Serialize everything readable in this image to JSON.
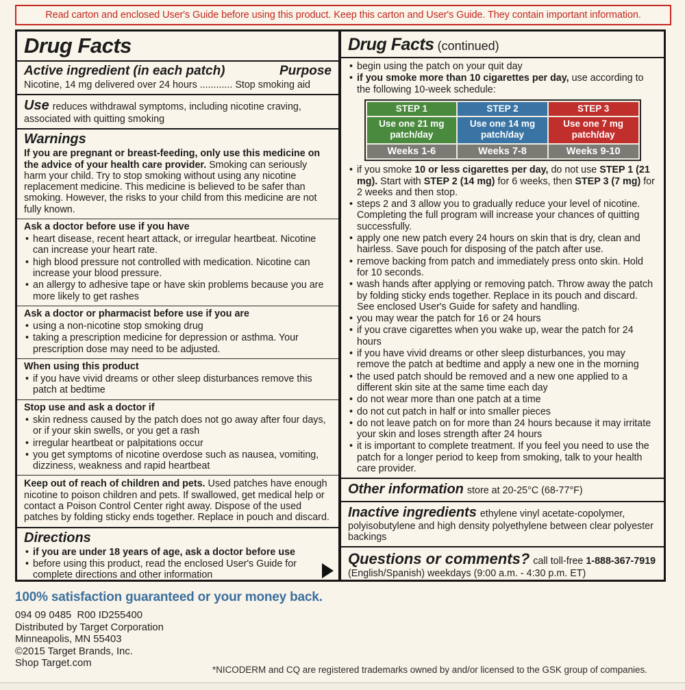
{
  "colors": {
    "notice_red": "#c4271f",
    "guarantee_blue": "#3c6f9e",
    "step1_green": "#4a8a3e",
    "step2_blue": "#3a74a4",
    "step3_red": "#c02f2c",
    "weeks_gray": "#7c7a75"
  },
  "top_notice": "Read carton and enclosed User's Guide before using this product. Keep this carton and User's Guide. They contain important information.",
  "left_panel": {
    "title": "Drug Facts",
    "active_ingredient": {
      "heading": "Active ingredient (in each patch)",
      "purpose_heading": "Purpose",
      "row": "Nicotine, 14 mg delivered over 24 hours ............ Stop smoking aid"
    },
    "use": {
      "heading": "Use",
      "text": "reduces withdrawal symptoms, including nicotine craving, associated with quitting smoking"
    },
    "warnings": {
      "heading": "Warnings",
      "bold_lead": "If you are pregnant or breast-feeding, only use this medicine on the advice of your health care provider.",
      "text": " Smoking can seriously harm your child. Try to stop smoking without using any nicotine replacement medicine. This medicine is believed to be safer than smoking. However, the risks to your child from this medicine are not fully known."
    },
    "ask_doctor": {
      "heading": "Ask a doctor before use if you have",
      "bullets": [
        "heart disease, recent heart attack, or irregular heartbeat. Nicotine can increase your heart rate.",
        "high blood pressure not controlled with medication. Nicotine can increase your blood pressure.",
        "an allergy to adhesive tape or have skin problems because you are more likely to get rashes"
      ]
    },
    "ask_pharmacist": {
      "heading": "Ask a doctor or pharmacist before use if you are",
      "bullets": [
        "using a non-nicotine stop smoking drug",
        "taking a prescription medicine for depression or asthma. Your prescription dose may need to be adjusted."
      ]
    },
    "when_using": {
      "heading": "When using this product",
      "bullets": [
        "if you have vivid dreams or other sleep disturbances remove this patch at bedtime"
      ]
    },
    "stop_use": {
      "heading": "Stop use and ask a doctor if",
      "bullets": [
        "skin redness caused by the patch does not go away after four days, or if your skin swells, or you get a rash",
        "irregular heartbeat or palpitations occur",
        "you get symptoms of nicotine overdose such as nausea, vomiting, dizziness, weakness and rapid heartbeat"
      ]
    },
    "keep_out": {
      "bold_lead": "Keep out of reach of children and pets.",
      "text": " Used patches have enough nicotine to poison children and pets. If swallowed, get medical help or contact a Poison Control Center right away. Dispose of the used patches by folding sticky ends together. Replace in pouch and discard."
    },
    "directions": {
      "heading": "Directions",
      "bullets": [
        [
          {
            "t": "if you are under 18 years of age, ask a doctor before use",
            "b": 1
          }
        ],
        [
          {
            "t": "before using this product, read the enclosed User's Guide for complete directions and other information",
            "b": 0
          }
        ]
      ]
    }
  },
  "right_panel": {
    "title": "Drug Facts",
    "title_suffix": " (continued)",
    "top_bullets": [
      "begin using the patch on your quit day",
      [
        {
          "t": "if you smoke more than 10 cigarettes per day,",
          "b": 1
        },
        {
          "t": " use according to the following 10-week schedule:",
          "b": 0
        }
      ]
    ],
    "schedule": {
      "steps": [
        {
          "label": "STEP 1",
          "use": "Use one 21 mg patch/day",
          "weeks": "Weeks 1-6"
        },
        {
          "label": "STEP 2",
          "use": "Use one 14 mg patch/day",
          "weeks": "Weeks 7-8"
        },
        {
          "label": "STEP 3",
          "use": "Use one 7 mg patch/day",
          "weeks": "Weeks 9-10"
        }
      ]
    },
    "main_bullets": [
      [
        {
          "t": "if you smoke ",
          "b": 0
        },
        {
          "t": "10 or less cigarettes per day,",
          "b": 1
        },
        {
          "t": " do not use ",
          "b": 0
        },
        {
          "t": "STEP 1 (21 mg).",
          "b": 1
        },
        {
          "t": " Start with ",
          "b": 0
        },
        {
          "t": "STEP 2 (14 mg)",
          "b": 1
        },
        {
          "t": " for 6 weeks, then ",
          "b": 0
        },
        {
          "t": "STEP 3 (7 mg)",
          "b": 1
        },
        {
          "t": " for 2 weeks and then stop.",
          "b": 0
        }
      ],
      "steps 2 and 3 allow you to gradually reduce your level of nicotine. Completing the full program will increase your chances of quitting successfully.",
      "apply one new patch every 24 hours on skin that is dry, clean and hairless. Save pouch for disposing of the patch after use.",
      "remove backing from patch and immediately press onto skin. Hold for 10 seconds.",
      "wash hands after applying or removing patch. Throw away the patch by folding sticky ends together. Replace in its pouch and discard. See enclosed User's Guide for safety and handling.",
      "you may wear the patch for 16 or 24 hours",
      "if you crave cigarettes when you wake up, wear the patch for 24 hours",
      "if you have vivid dreams or other sleep disturbances, you may remove the patch at bedtime and apply a new one in the morning",
      "the used patch should be removed and a new one applied to a different skin site at the same time each day",
      "do not wear more than one patch at a time",
      "do not cut patch in half or into smaller pieces",
      "do not leave patch on for more than 24 hours because it may irritate your skin and loses strength after 24 hours",
      "it is important to complete treatment. If you feel you need to use the patch for a longer period to keep from smoking, talk to your health care provider."
    ],
    "other_information": {
      "heading": "Other information",
      "text": "store at 20-25°C (68-77°F)"
    },
    "inactive_ingredients": {
      "heading": "Inactive ingredients",
      "text": "ethylene vinyl acetate-copolymer, polyisobutylene and high density polyethylene between clear polyester backings"
    },
    "questions": {
      "heading": "Questions or comments?",
      "pre": "call toll-free ",
      "phone": "1-888-367-7919",
      "post": " (English/Spanish) weekdays (9:00 a.m. - 4:30 p.m. ET)"
    }
  },
  "footer": {
    "guarantee": "100% satisfaction guaranteed or your money back.",
    "code": "094 09 0485  R00 ID255400",
    "lines": [
      "Distributed by Target Corporation",
      "Minneapolis, MN 55403",
      "©2015 Target Brands, Inc.",
      "Shop Target.com"
    ],
    "trademark": "*NICODERM and CQ are registered trademarks owned by and/or licensed to the GSK group of companies."
  }
}
